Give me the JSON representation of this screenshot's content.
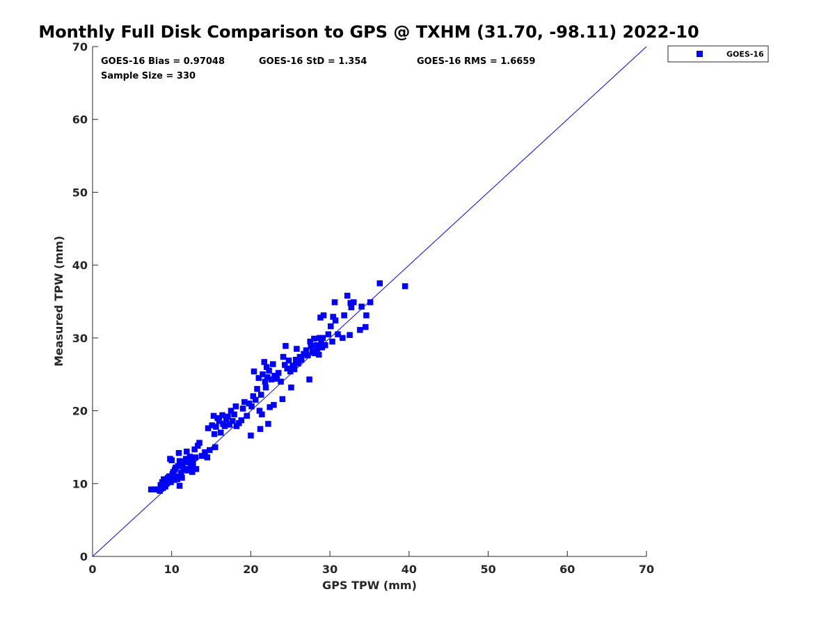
{
  "chart_data": {
    "type": "scatter",
    "title": "Monthly Full Disk Comparison to GPS @ TXHM (31.70, -98.11) 2022-10",
    "xlabel": "GPS TPW (mm)",
    "ylabel": "Measured TPW (mm)",
    "xlim": [
      0,
      70
    ],
    "ylim": [
      0,
      70
    ],
    "xticks": [
      "0",
      "10",
      "20",
      "30",
      "40",
      "50",
      "60",
      "70"
    ],
    "yticks": [
      "0",
      "10",
      "20",
      "30",
      "40",
      "50",
      "60",
      "70"
    ],
    "grid": false,
    "legend_position": "outside-top-right",
    "color": "#0000ff",
    "stats": {
      "bias": "GOES-16 Bias = 0.97048",
      "std": "GOES-16 StD = 1.354",
      "rms": "GOES-16 RMS = 1.6659",
      "sample_size": "Sample Size = 330"
    },
    "reference_line": {
      "from": [
        0,
        0
      ],
      "to": [
        70,
        70
      ]
    },
    "series": [
      {
        "name": "GOES-16",
        "marker": "square",
        "points": [
          [
            7.4,
            9.2
          ],
          [
            7.8,
            9.2
          ],
          [
            8.2,
            9.2
          ],
          [
            8.5,
            9.0
          ],
          [
            8.6,
            9.8
          ],
          [
            8.8,
            10.2
          ],
          [
            8.9,
            9.4
          ],
          [
            9.0,
            10.6
          ],
          [
            9.2,
            9.6
          ],
          [
            9.3,
            10.0
          ],
          [
            9.5,
            10.8
          ],
          [
            9.6,
            10.4
          ],
          [
            9.7,
            11.0
          ],
          [
            9.8,
            13.4
          ],
          [
            9.9,
            10.2
          ],
          [
            10.0,
            13.2
          ],
          [
            10.1,
            11.3
          ],
          [
            10.2,
            11.6
          ],
          [
            10.3,
            10.5
          ],
          [
            10.4,
            11.9
          ],
          [
            10.5,
            12.2
          ],
          [
            10.6,
            11.0
          ],
          [
            10.7,
            10.6
          ],
          [
            10.8,
            12.4
          ],
          [
            10.9,
            14.2
          ],
          [
            11.0,
            9.7
          ],
          [
            11.0,
            13.1
          ],
          [
            11.2,
            11.5
          ],
          [
            11.3,
            10.8
          ],
          [
            11.4,
            12.7
          ],
          [
            11.5,
            11.9
          ],
          [
            11.6,
            13.0
          ],
          [
            11.7,
            12.0
          ],
          [
            11.8,
            13.4
          ],
          [
            11.9,
            14.4
          ],
          [
            12.0,
            11.8
          ],
          [
            12.2,
            12.9
          ],
          [
            12.3,
            13.7
          ],
          [
            12.4,
            12.4
          ],
          [
            12.5,
            13.0
          ],
          [
            12.6,
            11.6
          ],
          [
            12.7,
            12.8
          ],
          [
            12.9,
            14.7
          ],
          [
            13.0,
            13.6
          ],
          [
            13.1,
            12.0
          ],
          [
            13.3,
            15.2
          ],
          [
            13.5,
            15.6
          ],
          [
            13.8,
            13.8
          ],
          [
            14.2,
            14.3
          ],
          [
            14.5,
            13.6
          ],
          [
            14.6,
            17.6
          ],
          [
            14.8,
            14.6
          ],
          [
            15.1,
            18.0
          ],
          [
            15.3,
            19.3
          ],
          [
            15.4,
            16.8
          ],
          [
            15.5,
            15.0
          ],
          [
            15.6,
            17.8
          ],
          [
            15.8,
            19.0
          ],
          [
            16.0,
            18.6
          ],
          [
            16.2,
            17.0
          ],
          [
            16.4,
            19.4
          ],
          [
            16.5,
            18.2
          ],
          [
            16.7,
            17.9
          ],
          [
            16.9,
            18.8
          ],
          [
            17.1,
            19.2
          ],
          [
            17.3,
            18.1
          ],
          [
            17.5,
            20.0
          ],
          [
            17.7,
            18.6
          ],
          [
            17.9,
            19.5
          ],
          [
            18.1,
            20.6
          ],
          [
            18.2,
            17.9
          ],
          [
            18.5,
            18.3
          ],
          [
            18.8,
            18.7
          ],
          [
            19.0,
            20.3
          ],
          [
            19.2,
            21.2
          ],
          [
            19.5,
            19.3
          ],
          [
            19.8,
            21.0
          ],
          [
            20.0,
            16.6
          ],
          [
            20.1,
            20.6
          ],
          [
            20.3,
            22.0
          ],
          [
            20.4,
            25.4
          ],
          [
            20.6,
            21.5
          ],
          [
            20.8,
            23.0
          ],
          [
            21.0,
            24.5
          ],
          [
            21.1,
            20.0
          ],
          [
            21.2,
            17.5
          ],
          [
            21.3,
            22.2
          ],
          [
            21.4,
            19.5
          ],
          [
            21.5,
            25.0
          ],
          [
            21.7,
            26.7
          ],
          [
            21.8,
            24.0
          ],
          [
            21.9,
            23.2
          ],
          [
            22.0,
            26.0
          ],
          [
            22.1,
            24.6
          ],
          [
            22.2,
            18.2
          ],
          [
            22.3,
            25.5
          ],
          [
            22.4,
            20.5
          ],
          [
            22.6,
            24.3
          ],
          [
            22.8,
            26.4
          ],
          [
            22.9,
            20.8
          ],
          [
            23.0,
            24.8
          ],
          [
            23.3,
            24.4
          ],
          [
            23.5,
            25.2
          ],
          [
            23.8,
            24.0
          ],
          [
            24.0,
            21.6
          ],
          [
            24.1,
            27.4
          ],
          [
            24.3,
            26.3
          ],
          [
            24.4,
            28.9
          ],
          [
            24.6,
            25.8
          ],
          [
            24.8,
            26.9
          ],
          [
            25.0,
            25.4
          ],
          [
            25.1,
            23.2
          ],
          [
            25.3,
            26.2
          ],
          [
            25.5,
            25.7
          ],
          [
            25.7,
            27.0
          ],
          [
            25.8,
            28.5
          ],
          [
            26.0,
            26.5
          ],
          [
            26.2,
            27.4
          ],
          [
            26.4,
            27.0
          ],
          [
            26.7,
            27.8
          ],
          [
            27.0,
            28.3
          ],
          [
            27.2,
            27.6
          ],
          [
            27.4,
            24.3
          ],
          [
            27.5,
            29.5
          ],
          [
            27.6,
            28.9
          ],
          [
            27.8,
            28.1
          ],
          [
            28.0,
            29.9
          ],
          [
            28.1,
            27.9
          ],
          [
            28.3,
            29.0
          ],
          [
            28.4,
            28.5
          ],
          [
            28.6,
            27.7
          ],
          [
            28.7,
            30.0
          ],
          [
            28.8,
            32.8
          ],
          [
            28.9,
            29.3
          ],
          [
            29.0,
            28.7
          ],
          [
            29.1,
            30.0
          ],
          [
            29.2,
            33.1
          ],
          [
            29.4,
            29.0
          ],
          [
            29.8,
            30.5
          ],
          [
            30.1,
            31.6
          ],
          [
            30.3,
            29.5
          ],
          [
            30.4,
            32.9
          ],
          [
            30.6,
            34.9
          ],
          [
            30.7,
            32.4
          ],
          [
            31.0,
            30.5
          ],
          [
            31.6,
            30.0
          ],
          [
            31.8,
            33.1
          ],
          [
            32.2,
            35.8
          ],
          [
            32.5,
            30.4
          ],
          [
            32.6,
            34.8
          ],
          [
            32.7,
            34.2
          ],
          [
            33.0,
            34.9
          ],
          [
            33.8,
            31.1
          ],
          [
            34.0,
            34.3
          ],
          [
            34.5,
            31.5
          ],
          [
            34.6,
            33.1
          ],
          [
            35.1,
            34.9
          ],
          [
            36.3,
            37.5
          ],
          [
            39.5,
            37.1
          ]
        ]
      }
    ]
  }
}
